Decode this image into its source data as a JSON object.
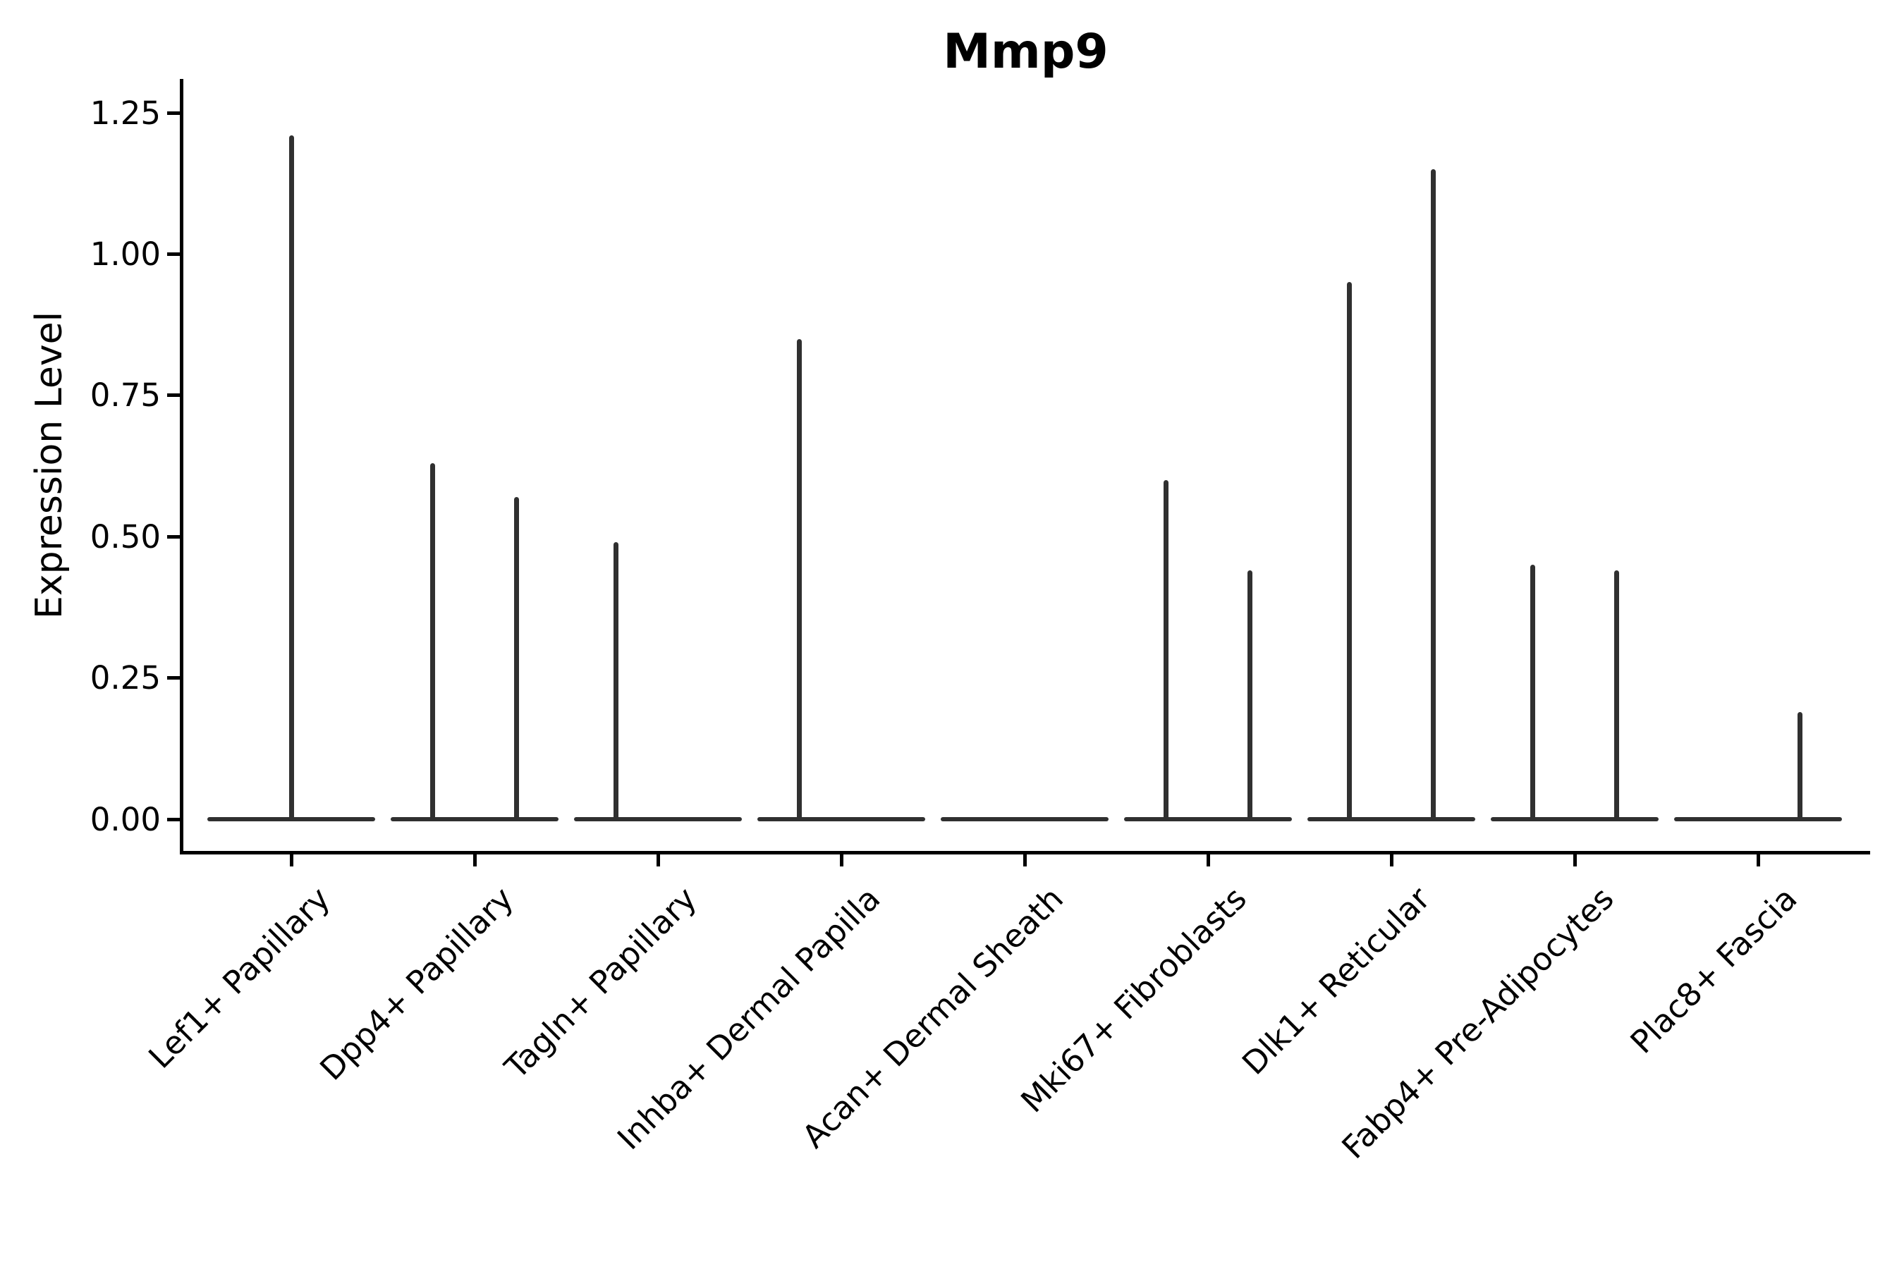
{
  "figure": {
    "background_color": "#ffffff",
    "axis_color": "#000000",
    "text_color": "#000000",
    "violin_color": "#303030"
  },
  "chart_data": {
    "type": "violin",
    "title": "Mmp9",
    "xlabel": "",
    "ylabel": "Expression Level",
    "legend_position": "none",
    "grid": false,
    "x_tick_rotation": 45,
    "yticks": [
      "0.00",
      "0.25",
      "0.50",
      "0.75",
      "1.00",
      "1.25"
    ],
    "ylim": [
      -0.06,
      1.31
    ],
    "categories": [
      "Lef1+ Papillary",
      "Dpp4+ Papillary",
      "Tagln+ Papillary",
      "Inhba+ Dermal Papilla",
      "Acan+ Dermal Sheath",
      "Mki67+ Fibroblasts",
      "Dlk1+ Reticular",
      "Fabp4+ Pre-Adipocytes",
      "Plac8+ Fascia"
    ],
    "violins": [
      {
        "label": "Lef1+ Papillary",
        "bulk_at_zero": true,
        "spikes": [
          {
            "offset": 0,
            "max_value": 1.21
          }
        ]
      },
      {
        "label": "Dpp4+ Papillary",
        "bulk_at_zero": true,
        "spikes": [
          {
            "offset": -0.227,
            "max_value": 0.63
          },
          {
            "offset": 0.227,
            "max_value": 0.57
          }
        ]
      },
      {
        "label": "Tagln+ Papillary",
        "bulk_at_zero": true,
        "spikes": [
          {
            "offset": -0.227,
            "max_value": 0.49
          }
        ]
      },
      {
        "label": "Inhba+ Dermal Papilla",
        "bulk_at_zero": true,
        "spikes": [
          {
            "offset": -0.227,
            "max_value": 0.85
          }
        ]
      },
      {
        "label": "Acan+ Dermal Sheath",
        "bulk_at_zero": true,
        "spikes": []
      },
      {
        "label": "Mki67+ Fibroblasts",
        "bulk_at_zero": true,
        "spikes": [
          {
            "offset": -0.227,
            "max_value": 0.6
          },
          {
            "offset": 0.227,
            "max_value": 0.44
          }
        ]
      },
      {
        "label": "Dlk1+ Reticular",
        "bulk_at_zero": true,
        "spikes": [
          {
            "offset": -0.227,
            "max_value": 0.95
          },
          {
            "offset": 0.227,
            "max_value": 1.15
          }
        ]
      },
      {
        "label": "Fabp4+ Pre-Adipocytes",
        "bulk_at_zero": true,
        "spikes": [
          {
            "offset": -0.227,
            "max_value": 0.45
          },
          {
            "offset": 0.227,
            "max_value": 0.44
          }
        ]
      },
      {
        "label": "Plac8+ Fascia",
        "bulk_at_zero": true,
        "spikes": [
          {
            "offset": 0.227,
            "max_value": 0.19
          }
        ]
      }
    ]
  }
}
